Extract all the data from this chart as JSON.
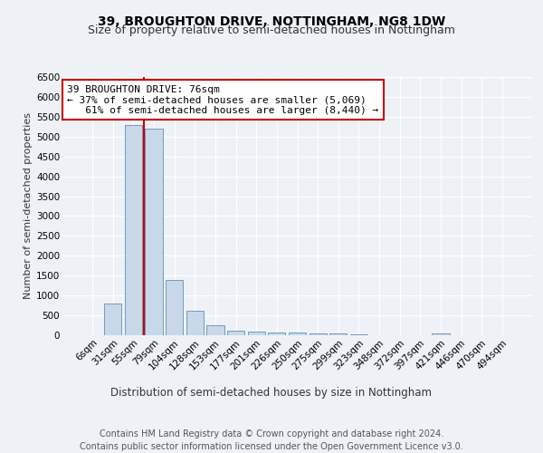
{
  "title1": "39, BROUGHTON DRIVE, NOTTINGHAM, NG8 1DW",
  "title2": "Size of property relative to semi-detached houses in Nottingham",
  "xlabel": "Distribution of semi-detached houses by size in Nottingham",
  "ylabel": "Number of semi-detached properties",
  "categories": [
    "6sqm",
    "31sqm",
    "55sqm",
    "79sqm",
    "104sqm",
    "128sqm",
    "153sqm",
    "177sqm",
    "201sqm",
    "226sqm",
    "250sqm",
    "275sqm",
    "299sqm",
    "323sqm",
    "348sqm",
    "372sqm",
    "397sqm",
    "421sqm",
    "446sqm",
    "470sqm",
    "494sqm"
  ],
  "values": [
    5,
    800,
    5300,
    5200,
    1400,
    620,
    250,
    120,
    80,
    70,
    60,
    40,
    40,
    30,
    2,
    2,
    2,
    55,
    2,
    2,
    2
  ],
  "bar_color": "#c8d8e8",
  "bar_edge_color": "#6090b8",
  "bar_width": 0.85,
  "ylim": [
    0,
    6500
  ],
  "yticks": [
    0,
    500,
    1000,
    1500,
    2000,
    2500,
    3000,
    3500,
    4000,
    4500,
    5000,
    5500,
    6000,
    6500
  ],
  "red_line_color": "#cc0000",
  "annotation_line1": "39 BROUGHTON DRIVE: 76sqm",
  "annotation_line2": "← 37% of semi-detached houses are smaller (5,069)",
  "annotation_line3": "   61% of semi-detached houses are larger (8,440) →",
  "annotation_box_color": "#ffffff",
  "annotation_box_edge": "#cc0000",
  "footer": "Contains HM Land Registry data © Crown copyright and database right 2024.\nContains public sector information licensed under the Open Government Licence v3.0.",
  "background_color": "#eef2f7",
  "grid_color": "#ffffff",
  "title1_fontsize": 10,
  "title2_fontsize": 9,
  "xlabel_fontsize": 8.5,
  "ylabel_fontsize": 8,
  "tick_fontsize": 7.5,
  "annotation_fontsize": 8,
  "footer_fontsize": 7
}
